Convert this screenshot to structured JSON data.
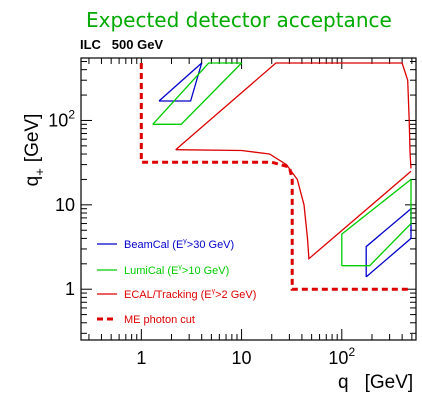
{
  "chart_data": {
    "type": "line",
    "title": "Expected detector acceptance",
    "subtitle": "ILC   500 GeV",
    "xlabel": "q  [GeV]",
    "xlabel_main": "q",
    "xlabel_sub": "-",
    "xlabel_unit": "[GeV]",
    "ylabel_main": "q",
    "ylabel_sub": "+",
    "ylabel_unit": "[GeV]",
    "xscale": "log",
    "yscale": "log",
    "xlim": [
      0.25,
      550
    ],
    "ylim": [
      0.25,
      550
    ],
    "x_ticks": [
      {
        "value": 1,
        "label": "1"
      },
      {
        "value": 10,
        "label": "10"
      },
      {
        "value": 100,
        "label": "10",
        "sup": "2"
      }
    ],
    "y_ticks": [
      {
        "value": 1,
        "label": "1"
      },
      {
        "value": 10,
        "label": "10"
      },
      {
        "value": 100,
        "label": "10",
        "sup": "2"
      }
    ],
    "legend_position": "bottom-left",
    "series": [
      {
        "name": "BeamCal",
        "legend_label": "BeamCal  (E  >30 GeV)",
        "legend_pre": "BeamCal  (E",
        "legend_sup": "γ",
        "legend_post": ">30 GeV)",
        "color": "#0000cc",
        "style": "solid",
        "segments": [
          [
            [
              1.5,
              170
            ],
            [
              4,
              480
            ]
          ],
          [
            [
              1.5,
              170
            ],
            [
              3.1,
              170
            ],
            [
              4,
              480
            ]
          ],
          [
            [
              175,
              1.4
            ],
            [
              175,
              3.2
            ],
            [
              490,
              9
            ]
          ],
          [
            [
              175,
              1.4
            ],
            [
              490,
              4
            ],
            [
              490,
              9
            ]
          ]
        ]
      },
      {
        "name": "LumiCal",
        "legend_label": "LumiCal  (E  >10 GeV)",
        "legend_pre": "LumiCal  (E",
        "legend_sup": "γ",
        "legend_post": ">10 GeV)",
        "color": "#00cc00",
        "style": "solid",
        "segments": [
          [
            [
              1.3,
              90
            ],
            [
              4.7,
              480
            ],
            [
              10,
              480
            ]
          ],
          [
            [
              1.3,
              90
            ],
            [
              2.5,
              90
            ],
            [
              10,
              480
            ]
          ],
          [
            [
              100,
              1.9
            ],
            [
              100,
              4.5
            ],
            [
              490,
              20
            ]
          ],
          [
            [
              100,
              1.9
            ],
            [
              190,
              1.9
            ],
            [
              490,
              6
            ],
            [
              490,
              20
            ]
          ]
        ]
      },
      {
        "name": "ECAL/Tracking",
        "legend_label": "ECAL/Tracking  (E  >2 GeV)",
        "legend_pre": "ECAL/Tracking  (E",
        "legend_sup": "γ",
        "legend_post": ">2 GeV)",
        "color": "#dd0000",
        "style": "solid",
        "segments": [
          [
            [
              2.2,
              45
            ],
            [
              22,
              480
            ],
            [
              400,
              480
            ],
            [
              455,
              300
            ],
            [
              470,
              100
            ],
            [
              480,
              40
            ],
            [
              490,
              27
            ]
          ],
          [
            [
              2.2,
              45
            ],
            [
              10,
              44
            ],
            [
              19,
              40
            ],
            [
              28,
              30
            ],
            [
              36,
              20
            ],
            [
              42,
              10
            ],
            [
              45.5,
              4
            ],
            [
              47,
              2.3
            ],
            [
              490,
              25
            ]
          ]
        ]
      },
      {
        "name": "ME photon cut",
        "legend_label": "ME photon cut",
        "color": "#dd0000",
        "style": "dashed",
        "segments": [
          [
            [
              1,
              480
            ],
            [
              1,
              32
            ],
            [
              20,
              32
            ],
            [
              30,
              28
            ],
            [
              32,
              20
            ],
            [
              32,
              1
            ],
            [
              490,
              1
            ]
          ]
        ]
      }
    ]
  }
}
